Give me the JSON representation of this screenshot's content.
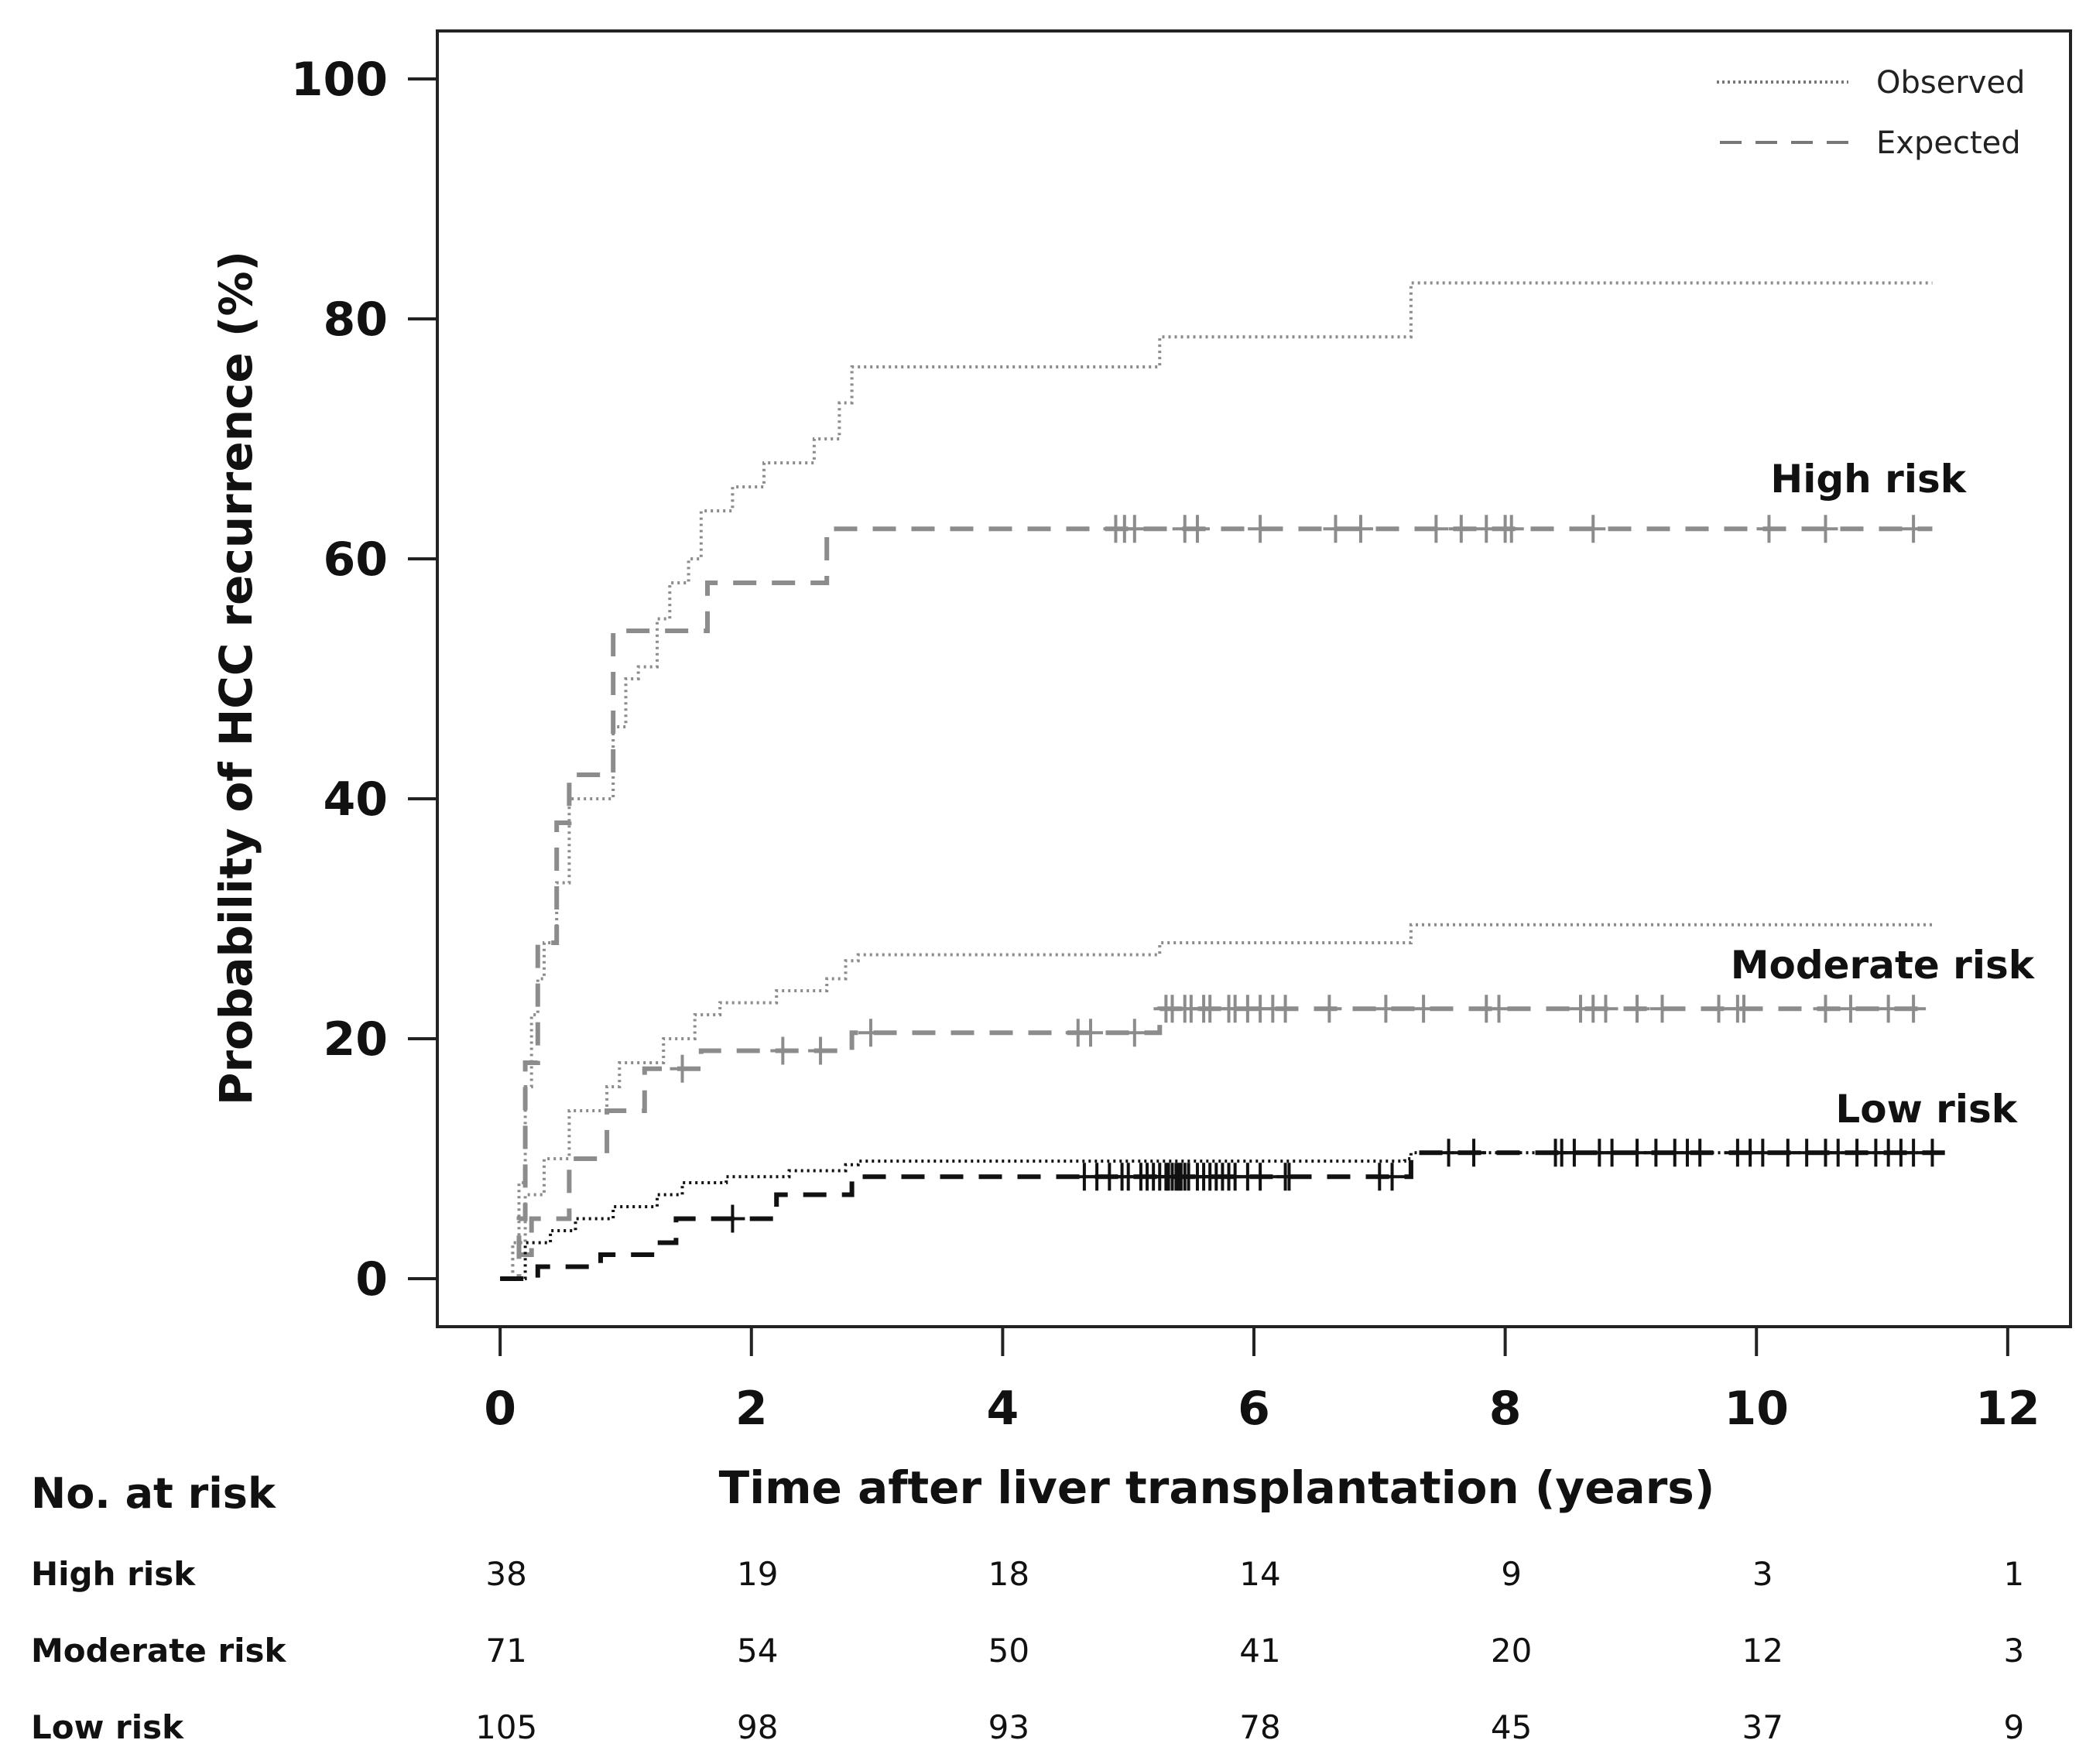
{
  "chart_data": {
    "type": "line",
    "xlabel": "Time after liver transplantation (years)",
    "ylabel": "Probability of HCC recurrence (%)",
    "xlim": [
      -0.5,
      12.5
    ],
    "ylim": [
      -4,
      104
    ],
    "x_ticks": [
      0,
      2,
      4,
      6,
      8,
      10,
      12
    ],
    "y_ticks": [
      0,
      20,
      40,
      60,
      80,
      100
    ],
    "grid": false,
    "legend": {
      "position": "top-right",
      "entries": [
        {
          "label": "Observed",
          "style": "dotted"
        },
        {
          "label": "Expected",
          "style": "dashed"
        }
      ]
    },
    "groups": [
      {
        "name": "High risk",
        "color": "#8c8c8c",
        "observed": [
          [
            0,
            0
          ],
          [
            0.1,
            3
          ],
          [
            0.15,
            8
          ],
          [
            0.2,
            16
          ],
          [
            0.25,
            22
          ],
          [
            0.3,
            25
          ],
          [
            0.35,
            28
          ],
          [
            0.45,
            33
          ],
          [
            0.55,
            40
          ],
          [
            0.85,
            40
          ],
          [
            0.9,
            46
          ],
          [
            1.0,
            50
          ],
          [
            1.1,
            51
          ],
          [
            1.25,
            55
          ],
          [
            1.35,
            58
          ],
          [
            1.5,
            60
          ],
          [
            1.6,
            64
          ],
          [
            1.85,
            66
          ],
          [
            2.1,
            68
          ],
          [
            2.5,
            70
          ],
          [
            2.7,
            73
          ],
          [
            2.8,
            76
          ],
          [
            5.2,
            76
          ],
          [
            5.25,
            78.5
          ],
          [
            7.2,
            78.5
          ],
          [
            7.25,
            83
          ],
          [
            11.4,
            83
          ]
        ],
        "expected": [
          [
            0,
            0
          ],
          [
            0.15,
            5
          ],
          [
            0.2,
            18
          ],
          [
            0.3,
            28
          ],
          [
            0.45,
            38
          ],
          [
            0.55,
            42
          ],
          [
            0.85,
            42
          ],
          [
            0.9,
            54
          ],
          [
            1.6,
            54
          ],
          [
            1.65,
            58
          ],
          [
            2.55,
            58
          ],
          [
            2.6,
            62.5
          ],
          [
            11.4,
            62.5
          ]
        ],
        "censored_x": [
          4.9,
          4.97,
          5.05,
          5.45,
          5.55,
          6.05,
          6.65,
          6.85,
          7.45,
          7.65,
          7.85,
          8.0,
          8.05,
          8.7,
          10.1,
          10.55,
          11.25
        ]
      },
      {
        "name": "Moderate risk",
        "color": "#8c8c8c",
        "observed": [
          [
            0,
            0
          ],
          [
            0.1,
            3
          ],
          [
            0.2,
            7
          ],
          [
            0.35,
            10
          ],
          [
            0.55,
            14
          ],
          [
            0.85,
            16
          ],
          [
            0.95,
            18
          ],
          [
            1.3,
            20
          ],
          [
            1.55,
            22
          ],
          [
            1.75,
            23
          ],
          [
            2.2,
            24
          ],
          [
            2.6,
            25
          ],
          [
            2.75,
            26.5
          ],
          [
            2.85,
            27
          ],
          [
            5.2,
            27
          ],
          [
            5.25,
            28
          ],
          [
            7.2,
            28
          ],
          [
            7.25,
            29.5
          ],
          [
            11.4,
            29.5
          ]
        ],
        "expected": [
          [
            0,
            0
          ],
          [
            0.15,
            2
          ],
          [
            0.25,
            5
          ],
          [
            0.55,
            10
          ],
          [
            0.85,
            14
          ],
          [
            1.15,
            17.5
          ],
          [
            1.55,
            17.5
          ],
          [
            1.6,
            19
          ],
          [
            2.75,
            19
          ],
          [
            2.8,
            20.5
          ],
          [
            5.2,
            20.5
          ],
          [
            5.25,
            22.5
          ],
          [
            11.4,
            22.5
          ]
        ],
        "censored_x": [
          1.45,
          2.25,
          2.55,
          2.95,
          4.6,
          4.7,
          5.05,
          5.3,
          5.35,
          5.45,
          5.5,
          5.6,
          5.65,
          5.8,
          5.85,
          5.95,
          6.05,
          6.15,
          6.25,
          6.6,
          7.05,
          7.35,
          7.85,
          7.95,
          8.6,
          8.7,
          8.8,
          9.05,
          9.25,
          9.7,
          9.85,
          9.9,
          10.55,
          10.75,
          11.05,
          11.25
        ]
      },
      {
        "name": "Low risk",
        "color": "#111111",
        "observed": [
          [
            0,
            0
          ],
          [
            0.2,
            3
          ],
          [
            0.4,
            4
          ],
          [
            0.6,
            5
          ],
          [
            0.9,
            6
          ],
          [
            1.25,
            7
          ],
          [
            1.45,
            8
          ],
          [
            1.8,
            8.5
          ],
          [
            2.3,
            9
          ],
          [
            2.75,
            9.5
          ],
          [
            2.85,
            9.8
          ],
          [
            7.2,
            10
          ],
          [
            7.25,
            10.5
          ],
          [
            11.5,
            10.5
          ]
        ],
        "expected": [
          [
            0,
            0
          ],
          [
            0.3,
            1
          ],
          [
            0.8,
            2
          ],
          [
            1.25,
            3
          ],
          [
            1.4,
            5
          ],
          [
            2.1,
            5
          ],
          [
            2.2,
            7
          ],
          [
            2.75,
            7
          ],
          [
            2.8,
            8.5
          ],
          [
            7.2,
            8.5
          ],
          [
            7.25,
            10.5
          ],
          [
            11.5,
            10.5
          ]
        ],
        "censored_x": [
          1.85,
          4.65,
          4.75,
          4.85,
          4.95,
          5.0,
          5.1,
          5.15,
          5.2,
          5.25,
          5.3,
          5.32,
          5.35,
          5.38,
          5.4,
          5.42,
          5.45,
          5.48,
          5.55,
          5.6,
          5.65,
          5.7,
          5.75,
          5.8,
          5.85,
          5.95,
          6.05,
          6.25,
          6.28,
          7.0,
          7.1,
          7.55,
          7.75,
          8.4,
          8.45,
          8.55,
          8.75,
          8.85,
          9.05,
          9.2,
          9.35,
          9.45,
          9.55,
          9.85,
          9.95,
          10.05,
          10.25,
          10.4,
          10.55,
          10.65,
          10.8,
          10.95,
          11.05,
          11.15,
          11.25,
          11.4
        ]
      }
    ],
    "annotations": [
      {
        "text": "High risk",
        "x": 11.4,
        "y": 66
      },
      {
        "text": "Moderate risk",
        "x": 11.4,
        "y": 26
      },
      {
        "text": "Low risk",
        "x": 11.4,
        "y": 14
      }
    ]
  },
  "risk_table": {
    "title": "No. at risk",
    "times": [
      0,
      2,
      4,
      6,
      8,
      10,
      12
    ],
    "rows": [
      {
        "label": "High risk",
        "values": [
          "38",
          "19",
          "18",
          "14",
          "9",
          "3",
          "1"
        ]
      },
      {
        "label": "Moderate risk",
        "values": [
          "71",
          "54",
          "50",
          "41",
          "20",
          "12",
          "3"
        ]
      },
      {
        "label": "Low risk",
        "values": [
          "105",
          "98",
          "93",
          "78",
          "45",
          "37",
          "9"
        ]
      }
    ]
  }
}
